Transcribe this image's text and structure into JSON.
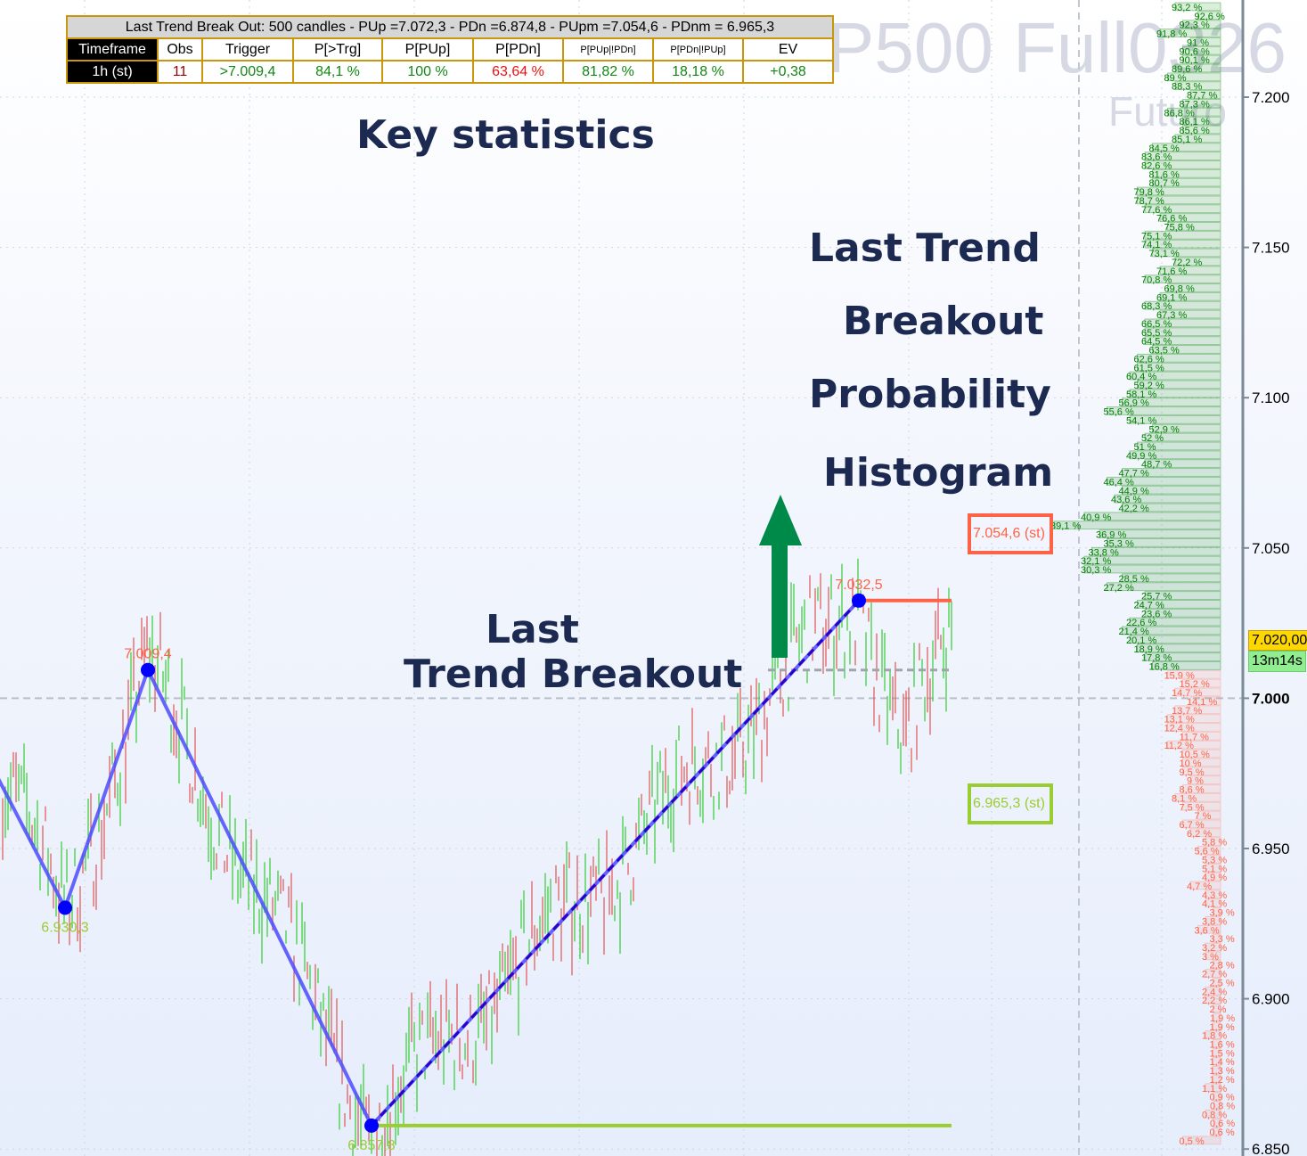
{
  "watermark": {
    "symbol": "P500 Full0326",
    "sub": "Futuro"
  },
  "stats_table": {
    "title": "Last Trend Break Out: 500 candles - PUp =7.072,3 - PDn =6.874,8 - PUpm =7.054,6 - PDnm = 6.965,3",
    "headers": [
      "Timeframe",
      "Obs",
      "Trigger",
      "P[>Trg]",
      "P[PUp]",
      "P[PDn]",
      "P[PUp|!PDn]",
      "P[PDn|!PUp]",
      "EV"
    ],
    "row": [
      "1h (st)",
      "11",
      ">7.009,4",
      "84,1 %",
      "100 %",
      "63,64 %",
      "81,82 %",
      "18,18 %",
      "+0,38"
    ]
  },
  "annotations": {
    "key_statistics": "Key statistics",
    "histogram_title": [
      "Last Trend",
      "Breakout",
      "Probability",
      "Histogram"
    ],
    "last_breakout": [
      "Last",
      "Trend Breakout"
    ]
  },
  "price_tag": {
    "price": "7.020,00",
    "timer": "13m14s",
    "price_color": "#ffd700",
    "timer_color": "#90ee90"
  },
  "level_boxes": {
    "up": {
      "label": "7.054,6 (st)",
      "color": "#ff6347"
    },
    "down": {
      "label": "6.965,3 (st)",
      "color": "#9acd32"
    }
  },
  "icons": {
    "arrow": "arrow-up-icon"
  },
  "colors": {
    "zigzag": "#4b4bff",
    "pivot": "#0000ff",
    "bull": "#33cc33",
    "bear": "#e05555",
    "arrow": "#008a4a",
    "text": "#1c2951"
  },
  "chart_data": {
    "type": "ohlc",
    "y_axis": {
      "ticks": [
        "7.200",
        "7.150",
        "7.100",
        "7.050",
        "7.000",
        "6.950",
        "6.900",
        "6.850"
      ],
      "values": [
        7200,
        7150,
        7100,
        7050,
        7000,
        6950,
        6900,
        6850
      ],
      "ylim": [
        6849,
        7228
      ],
      "bold_tick": "7.000"
    },
    "grid": true,
    "pivots": [
      {
        "price": 6930.3,
        "label": "6.930,3",
        "kind": "low"
      },
      {
        "price": 7009.4,
        "label": "7.009,4",
        "kind": "high"
      },
      {
        "price": 6857.8,
        "label": "6.857,8",
        "kind": "low"
      },
      {
        "price": 7032.5,
        "label": "7.032,5",
        "kind": "high"
      }
    ],
    "levels": {
      "trigger": 7009.4,
      "last_high": 7032.5,
      "last_low": 6857.8,
      "round": 7000,
      "current": 7020.0
    },
    "histogram": {
      "up_percentages": [
        "93,2",
        "92,6",
        "92,3",
        "91,8",
        "91",
        "90,6",
        "90,1",
        "89,6",
        "89",
        "88,3",
        "87,7",
        "87,3",
        "86,8",
        "86,1",
        "85,6",
        "85,1",
        "84,5",
        "83,6",
        "82,6",
        "81,6",
        "80,7",
        "79,8",
        "78,7",
        "77,6",
        "76,6",
        "75,8",
        "75,1",
        "74,1",
        "73,1",
        "72,2",
        "71,6",
        "70,8",
        "69,8",
        "69,1",
        "68,3",
        "67,3",
        "66,5",
        "65,5",
        "64,5",
        "63,5",
        "62,6",
        "61,5",
        "60,4",
        "59,2",
        "58,1",
        "56,9",
        "55,6",
        "54,1",
        "52,9",
        "52",
        "51",
        "49,9",
        "48,7",
        "47,7",
        "46,4",
        "44,9",
        "43,6",
        "42,2",
        "40,9",
        "39,1",
        "36,9",
        "35,3",
        "33,8",
        "32,1",
        "30,3",
        "28,5",
        "27,2",
        "25,7",
        "24,7",
        "23,6",
        "22,6",
        "21,4",
        "20,1",
        "18,9",
        "17,8",
        "16,8"
      ],
      "down_percentages": [
        "15,9",
        "15,2",
        "14,7",
        "14,1",
        "13,7",
        "13,1",
        "12,4",
        "11,7",
        "11,2",
        "10,5",
        "10",
        "9,5",
        "9",
        "8,6",
        "8,1",
        "7,5",
        "7",
        "6,7",
        "6,2",
        "5,8",
        "5,6",
        "5,3",
        "5,1",
        "4,9",
        "4,7",
        "4,3",
        "4,1",
        "3,9",
        "3,8",
        "3,6",
        "3,3",
        "3,2",
        "3",
        "2,8",
        "2,7",
        "2,5",
        "2,4",
        "2,2",
        "2",
        "1,9",
        "1,9",
        "1,8",
        "1,6",
        "1,5",
        "1,4",
        "1,3",
        "1,2",
        "1,1",
        "0,9",
        "0,8",
        "0,8",
        "0,6",
        "0,6",
        "0,5"
      ],
      "up_color": "#008000",
      "down_color": "#ff6347"
    }
  }
}
